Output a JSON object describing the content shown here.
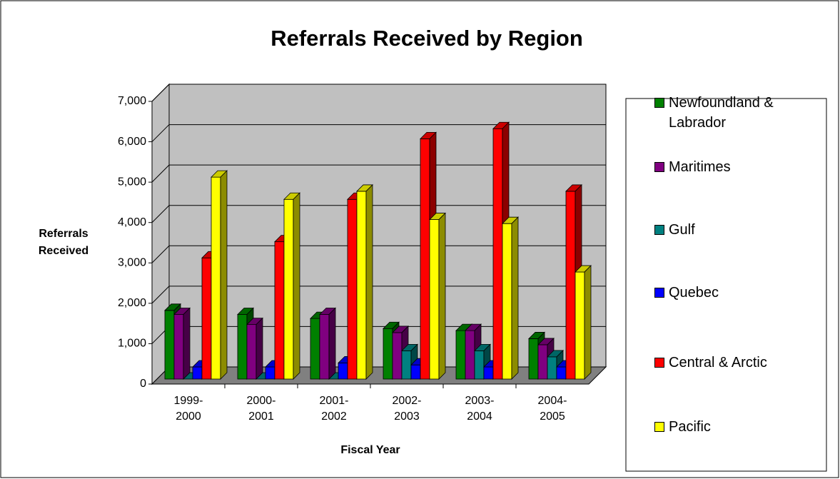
{
  "chart_data": {
    "type": "bar3d",
    "title": "Referrals Received by Region",
    "x_label": "Fiscal Year",
    "y_label": "Referrals Received",
    "categories": [
      "1999-2000",
      "2000-2001",
      "2001-2002",
      "2002-2003",
      "2003-2004",
      "2004-2005"
    ],
    "series": [
      {
        "name": "Newfoundland & Labrador",
        "color": "#008000",
        "values": [
          1700,
          1600,
          1500,
          1250,
          1200,
          1000
        ]
      },
      {
        "name": "Maritimes",
        "color": "#800080",
        "values": [
          1600,
          1350,
          1600,
          1150,
          1200,
          850
        ]
      },
      {
        "name": "Gulf",
        "color": "#008080",
        "values": [
          0,
          0,
          0,
          700,
          700,
          550
        ]
      },
      {
        "name": "Quebec",
        "color": "#0000ff",
        "values": [
          300,
          300,
          400,
          350,
          300,
          300
        ]
      },
      {
        "name": "Central & Arctic",
        "color": "#ff0000",
        "values": [
          3000,
          3400,
          4450,
          5950,
          6200,
          4650
        ]
      },
      {
        "name": "Pacific",
        "color": "#ffff00",
        "values": [
          5000,
          4450,
          4650,
          3950,
          3850,
          2650
        ]
      }
    ],
    "ylim": [
      0,
      7000
    ],
    "yticks": [
      0,
      {
        "value": 1000,
        "label": "1,000"
      },
      {
        "value": 2000,
        "label": "2,000"
      },
      {
        "value": 3000,
        "label": "3,000"
      },
      {
        "value": 4000,
        "label": "4,000"
      },
      {
        "value": 5000,
        "label": "5,000"
      },
      {
        "value": 6000,
        "label": "6,000"
      },
      {
        "value": 7000,
        "label": "7,000"
      }
    ],
    "grid": true,
    "legend": "right"
  }
}
